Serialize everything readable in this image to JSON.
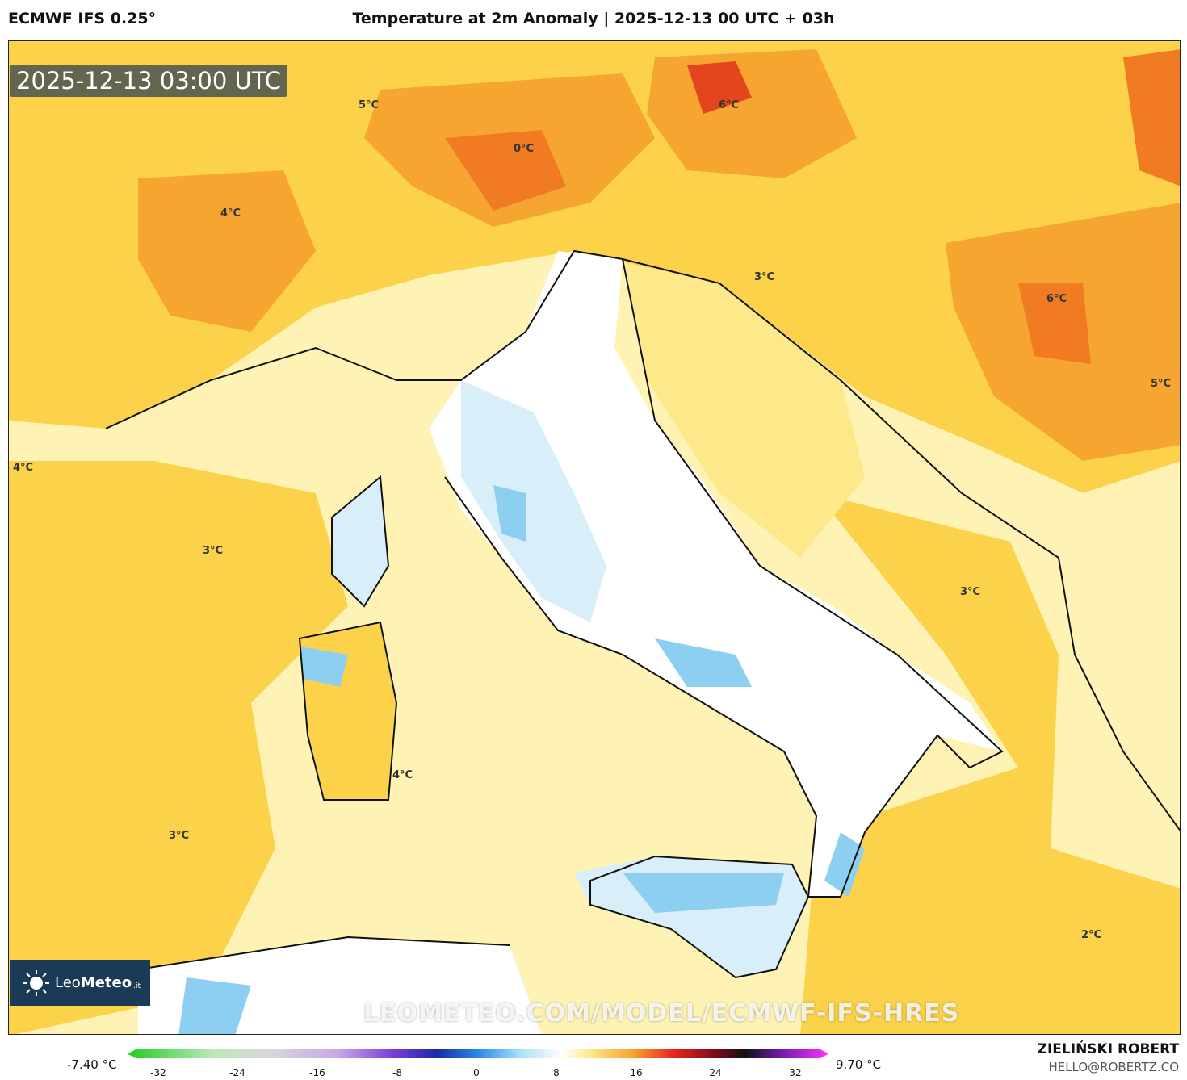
{
  "header": {
    "model": "ECMWF IFS 0.25°",
    "title": "Temperature at 2m Anomaly | 2025-12-13 00 UTC + 03h"
  },
  "map": {
    "timestamp": "2025-12-13 03:00 UTC",
    "watermark": "LEOMETEO.COM/MODEL/ECMWF-IFS-HRES",
    "contour_labels": [
      "5°C",
      "6°C",
      "0°C",
      "4°C",
      "3°C",
      "6°C",
      "5°C",
      "4°C",
      "3°C",
      "3°C",
      "4°C",
      "3°C",
      "2°C"
    ],
    "colors": {
      "sea_warm": "#fde88a",
      "warm_land": "#fbd24a",
      "orange": "#f7a531",
      "deep_orange": "#f07b22",
      "red": "#e5451d",
      "neutral": "#ffffff",
      "cool": "#d8eef8",
      "cold": "#8ccff0",
      "blue": "#3aa7e8"
    }
  },
  "logo": {
    "name": "Leo",
    "name_bold": "Meteo",
    "tld": ".it"
  },
  "colorbar": {
    "min_label": "-7.40 °C",
    "max_label": "9.70 °C",
    "ticks": [
      "-32",
      "-24",
      "-16",
      "-8",
      "0",
      "8",
      "16",
      "24",
      "32"
    ]
  },
  "footer": {
    "author": "ZIELIŃSKI ROBERT",
    "email": "HELLO@ROBERTZ.CO"
  }
}
